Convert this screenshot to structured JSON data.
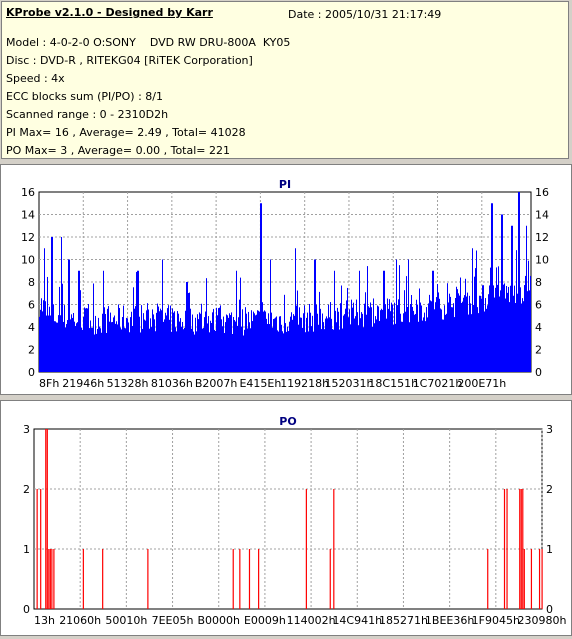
{
  "header": {
    "title": "KProbe v2.1.0 - Designed by Karr",
    "date": "Date : 2005/10/31 21:17:49",
    "lines": [
      "Model : 4-0-2-0 O:SONY    DVD RW DRU-800A  KY05",
      "Disc : DVD-R , RITEKG04 [RiTEK Corporation]",
      "Speed : 4x",
      "ECC blocks sum (PI/PO) : 8/1",
      "Scanned range : 0 - 2310D2h",
      "PI Max= 16 , Average= 2.49 , Total= 41028",
      "PO Max= 3 , Average= 0.00 , Total= 221"
    ]
  },
  "colors": {
    "pi_fill": "#0000ff",
    "po_fill": "#ff0000",
    "title_color": "#000080",
    "header_bg": "#ffffe1",
    "window_bg": "#d4d0c8"
  },
  "chart_data": [
    {
      "type": "bar",
      "title": "PI",
      "ylim": [
        0,
        16
      ],
      "yticks": [
        0,
        2,
        4,
        6,
        8,
        10,
        12,
        14,
        16
      ],
      "xticks": [
        "8Fh",
        "21946h",
        "51328h",
        "81036h",
        "B2007h",
        "E415Eh",
        "119218h",
        "152031h",
        "18C151h",
        "1C7021h",
        "200E71h"
      ],
      "grid": true,
      "series_color": "#0000ff",
      "baseline": 5,
      "baseline_shape": [
        [
          0,
          6.2
        ],
        [
          0.02,
          5.0
        ],
        [
          0.1,
          4.6
        ],
        [
          0.2,
          4.8
        ],
        [
          0.3,
          4.6
        ],
        [
          0.4,
          4.5
        ],
        [
          0.5,
          4.6
        ],
        [
          0.6,
          5.0
        ],
        [
          0.7,
          5.4
        ],
        [
          0.8,
          5.8
        ],
        [
          0.9,
          6.5
        ],
        [
          1.0,
          7.5
        ]
      ],
      "peaks": [
        {
          "pos": 0.01,
          "value": 11
        },
        {
          "pos": 0.025,
          "value": 12
        },
        {
          "pos": 0.045,
          "value": 12
        },
        {
          "pos": 0.06,
          "value": 10
        },
        {
          "pos": 0.08,
          "value": 9
        },
        {
          "pos": 0.13,
          "value": 9
        },
        {
          "pos": 0.2,
          "value": 9
        },
        {
          "pos": 0.25,
          "value": 10
        },
        {
          "pos": 0.3,
          "value": 8
        },
        {
          "pos": 0.4,
          "value": 9
        },
        {
          "pos": 0.45,
          "value": 15
        },
        {
          "pos": 0.47,
          "value": 10
        },
        {
          "pos": 0.52,
          "value": 11
        },
        {
          "pos": 0.56,
          "value": 10
        },
        {
          "pos": 0.6,
          "value": 9
        },
        {
          "pos": 0.65,
          "value": 9
        },
        {
          "pos": 0.7,
          "value": 9
        },
        {
          "pos": 0.75,
          "value": 10
        },
        {
          "pos": 0.8,
          "value": 9
        },
        {
          "pos": 0.88,
          "value": 11
        },
        {
          "pos": 0.92,
          "value": 15
        },
        {
          "pos": 0.94,
          "value": 14
        },
        {
          "pos": 0.96,
          "value": 13
        },
        {
          "pos": 0.975,
          "value": 16
        },
        {
          "pos": 0.99,
          "value": 13
        }
      ]
    },
    {
      "type": "bar",
      "title": "PO",
      "ylim": [
        0,
        3
      ],
      "yticks": [
        0,
        1,
        2,
        3
      ],
      "xticks": [
        "13h",
        "21060h",
        "50010h",
        "7EE05h",
        "B0000h",
        "E0009h",
        "114002h",
        "14C941h",
        "185271h",
        "1BEE36h",
        "1F9045h",
        "230980h"
      ],
      "grid": true,
      "series_color": "#ff0000",
      "bars": [
        {
          "pos": 0.005,
          "value": 2
        },
        {
          "pos": 0.012,
          "value": 2
        },
        {
          "pos": 0.022,
          "value": 3
        },
        {
          "pos": 0.025,
          "value": 3
        },
        {
          "pos": 0.028,
          "value": 1
        },
        {
          "pos": 0.031,
          "value": 1
        },
        {
          "pos": 0.034,
          "value": 1
        },
        {
          "pos": 0.038,
          "value": 1
        },
        {
          "pos": 0.096,
          "value": 1
        },
        {
          "pos": 0.134,
          "value": 1
        },
        {
          "pos": 0.223,
          "value": 1
        },
        {
          "pos": 0.391,
          "value": 1
        },
        {
          "pos": 0.404,
          "value": 1
        },
        {
          "pos": 0.423,
          "value": 1
        },
        {
          "pos": 0.441,
          "value": 1
        },
        {
          "pos": 0.535,
          "value": 2
        },
        {
          "pos": 0.582,
          "value": 1
        },
        {
          "pos": 0.589,
          "value": 2
        },
        {
          "pos": 0.892,
          "value": 1
        },
        {
          "pos": 0.925,
          "value": 2
        },
        {
          "pos": 0.93,
          "value": 2
        },
        {
          "pos": 0.955,
          "value": 2
        },
        {
          "pos": 0.958,
          "value": 2
        },
        {
          "pos": 0.961,
          "value": 2
        },
        {
          "pos": 0.964,
          "value": 1
        },
        {
          "pos": 0.978,
          "value": 1
        },
        {
          "pos": 0.994,
          "value": 1
        },
        {
          "pos": 0.999,
          "value": 1
        }
      ]
    }
  ]
}
